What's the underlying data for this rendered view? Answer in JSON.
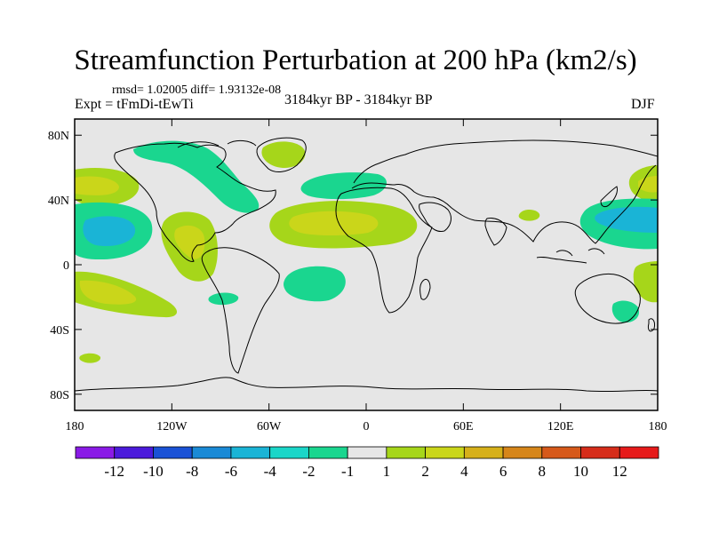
{
  "title": "Streamfunction Perturbation at 200 hPa (km2/s)",
  "stats": "rmsd= 1.02005 diff= 1.93132e-08",
  "experiment": "Expt = tFmDi-tEwTi",
  "period": "3184kyr BP - 3184kyr BP",
  "season": "DJF",
  "map": {
    "projection": "cylindrical equidistant",
    "lon_range": [
      -180,
      180
    ],
    "lat_range": [
      -90,
      90
    ],
    "background_color": "#e6e6e6",
    "coastline_color": "#000000"
  },
  "axes": {
    "y_ticks": [
      {
        "lat": 80,
        "label": "80N"
      },
      {
        "lat": 40,
        "label": "40N"
      },
      {
        "lat": 0,
        "label": "0"
      },
      {
        "lat": -40,
        "label": "40S"
      },
      {
        "lat": -80,
        "label": "80S"
      }
    ],
    "x_ticks": [
      {
        "lon": -180,
        "label": "180"
      },
      {
        "lon": -120,
        "label": "120W"
      },
      {
        "lon": -60,
        "label": "60W"
      },
      {
        "lon": 0,
        "label": "0"
      },
      {
        "lon": 60,
        "label": "60E"
      },
      {
        "lon": 120,
        "label": "120E"
      },
      {
        "lon": 180,
        "label": "180"
      }
    ]
  },
  "colorbar": {
    "colors": [
      "#8a1ae6",
      "#4b1adb",
      "#1a52d6",
      "#1a8ad6",
      "#1ab4d6",
      "#1ad6c8",
      "#1ad68f",
      "#e6e6e6",
      "#a6d61a",
      "#cad61a",
      "#d6b01a",
      "#d6861a",
      "#d6591a",
      "#d62d1a",
      "#e61a1a"
    ],
    "labels": [
      "-12",
      "-10",
      "-8",
      "-6",
      "-4",
      "-2",
      "-1",
      "1",
      "2",
      "4",
      "6",
      "8",
      "10",
      "12"
    ]
  },
  "chart_data": {
    "type": "heatmap",
    "variable": "Streamfunction Perturbation at 200 hPa",
    "units": "km2/s",
    "levels": [
      -12,
      -10,
      -8,
      -6,
      -4,
      -2,
      -1,
      1,
      2,
      4,
      6,
      8,
      10,
      12
    ],
    "features": [
      {
        "lon": -167,
        "lat": 42,
        "value": 4
      },
      {
        "lon": -160,
        "lat": 20,
        "value": -4
      },
      {
        "lon": -160,
        "lat": -15,
        "value": 4
      },
      {
        "lon": -115,
        "lat": 15,
        "value": 4
      },
      {
        "lon": -95,
        "lat": 72,
        "value": -2
      },
      {
        "lon": -102,
        "lat": 52,
        "value": -2
      },
      {
        "lon": -75,
        "lat": 70,
        "value": 2
      },
      {
        "lon": -30,
        "lat": 45,
        "value": -2
      },
      {
        "lon": -15,
        "lat": 22,
        "value": 4
      },
      {
        "lon": -25,
        "lat": -15,
        "value": -2
      },
      {
        "lon": -95,
        "lat": -20,
        "value": -2
      },
      {
        "lon": 32,
        "lat": 25,
        "value": 2
      },
      {
        "lon": 100,
        "lat": 28,
        "value": 2
      },
      {
        "lon": 150,
        "lat": 22,
        "value": -4
      },
      {
        "lon": 168,
        "lat": 50,
        "value": 2
      },
      {
        "lon": 172,
        "lat": -10,
        "value": 2
      },
      {
        "lon": 155,
        "lat": -30,
        "value": -2
      },
      {
        "lon": -175,
        "lat": -58,
        "value": 2
      }
    ]
  }
}
